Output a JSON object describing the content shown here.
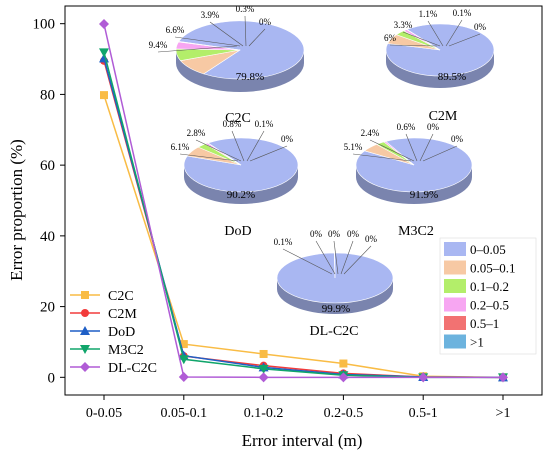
{
  "chart_data": {
    "type": "line",
    "xlabel": "Error interval (m)",
    "ylabel": "Error proportion (%)",
    "categories": [
      "0-0.05",
      "0.05-0.1",
      "0.1-0.2",
      "0.2-0.5",
      "0.5-1",
      ">1"
    ],
    "ylim": [
      -5,
      105
    ],
    "yticks": [
      0,
      20,
      40,
      60,
      80,
      100
    ],
    "series": [
      {
        "name": "C2C",
        "color": "#F9BC45",
        "marker": "square",
        "values": [
          79.8,
          9.4,
          6.6,
          3.9,
          0.3,
          0
        ]
      },
      {
        "name": "C2M",
        "color": "#F23B3B",
        "marker": "circle",
        "values": [
          89.5,
          6.0,
          3.3,
          1.1,
          0.1,
          0
        ]
      },
      {
        "name": "DoD",
        "color": "#1F5FC6",
        "marker": "triangle-up",
        "values": [
          90.2,
          6.1,
          2.8,
          0.8,
          0.1,
          0
        ]
      },
      {
        "name": "M3C2",
        "color": "#10A56B",
        "marker": "triangle-down",
        "values": [
          91.9,
          5.1,
          2.4,
          0.6,
          0,
          0
        ]
      },
      {
        "name": "DL-C2C",
        "color": "#B05CD6",
        "marker": "diamond",
        "values": [
          99.9,
          0.1,
          0,
          0,
          0,
          0
        ]
      }
    ],
    "pies": [
      {
        "name": "C2C",
        "values": [
          79.8,
          9.4,
          6.6,
          3.9,
          0.3,
          0
        ],
        "labels": [
          "79.8%",
          "9.4%",
          "6.6%",
          "3.9%",
          "0.3%",
          "0%"
        ]
      },
      {
        "name": "C2M",
        "values": [
          89.5,
          6,
          3.3,
          1.1,
          0.1,
          0
        ],
        "labels": [
          "89.5%",
          "6%",
          "3.3%",
          "1.1%",
          "0.1%",
          "0%"
        ]
      },
      {
        "name": "DoD",
        "values": [
          90.2,
          6.1,
          2.8,
          0.8,
          0.1,
          0
        ],
        "labels": [
          "90.2%",
          "6.1%",
          "2.8%",
          "0.8%",
          "0.1%",
          "0%"
        ]
      },
      {
        "name": "M3C2",
        "values": [
          91.9,
          5.1,
          2.4,
          0.6,
          0,
          0
        ],
        "labels": [
          "91.9%",
          "5.1%",
          "2.4%",
          "0.6%",
          "0%",
          "0%"
        ]
      },
      {
        "name": "DL-C2C",
        "values": [
          99.9,
          0.1,
          0,
          0,
          0,
          0
        ],
        "labels": [
          "99.9%",
          "0.1%",
          "0%",
          "0%",
          "0%",
          "0%"
        ]
      }
    ],
    "pie_legend": {
      "labels": [
        "0–0.05",
        "0.05–0.1",
        "0.1–0.2",
        "0.2–0.5",
        "0.5–1",
        ">1"
      ],
      "colors": [
        "#A9B7F2",
        "#F7C9A4",
        "#B3EE6A",
        "#F7A6F2",
        "#F27272",
        "#6CB3DE"
      ]
    },
    "legend_position": "bottom-left",
    "pie_legend_position": "bottom-right",
    "grid": false
  }
}
